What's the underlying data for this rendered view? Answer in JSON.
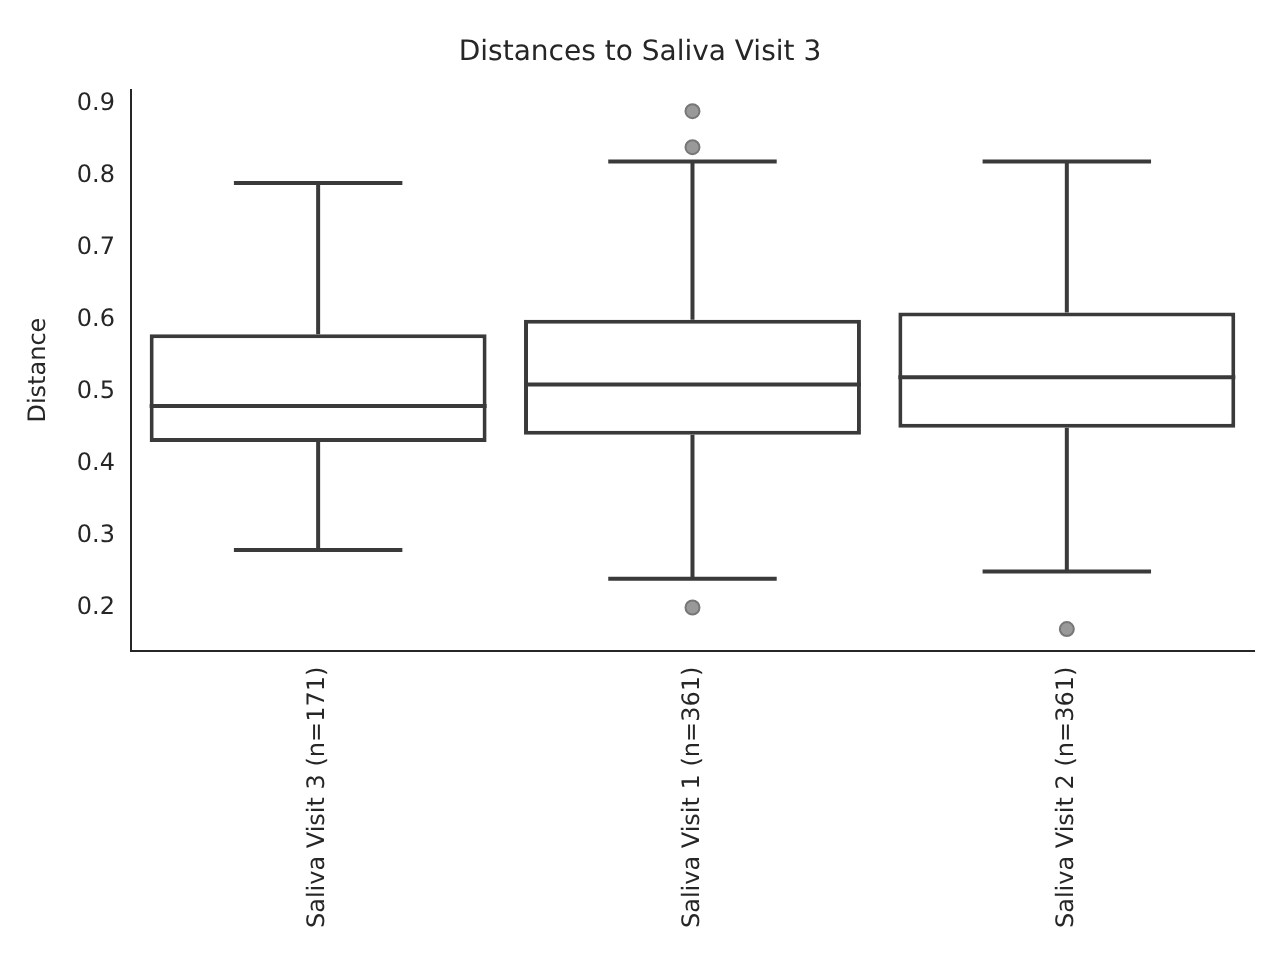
{
  "chart_data": {
    "type": "box",
    "title": "Distances to Saliva Visit 3",
    "ylabel": "Distance",
    "categories": [
      "Saliva Visit 3 (n=171)",
      "Saliva Visit 1 (n=361)",
      "Saliva Visit 2 (n=361)"
    ],
    "boxes": [
      {
        "low": 0.28,
        "q1": 0.43,
        "median": 0.48,
        "q3": 0.58,
        "high": 0.79
      },
      {
        "low": 0.24,
        "q1": 0.44,
        "median": 0.51,
        "q3": 0.6,
        "high": 0.82,
        "outliers": [
          0.89,
          0.84,
          0.2
        ]
      },
      {
        "low": 0.25,
        "q1": 0.45,
        "median": 0.52,
        "q3": 0.61,
        "high": 0.82,
        "outliers": [
          0.17
        ]
      }
    ],
    "color": "#3a3a3a",
    "ylim": [
      0.14,
      0.92
    ],
    "yticks": [
      0.2,
      0.3,
      0.4,
      0.5,
      0.6,
      0.7,
      0.8,
      0.9
    ],
    "grid": false
  }
}
